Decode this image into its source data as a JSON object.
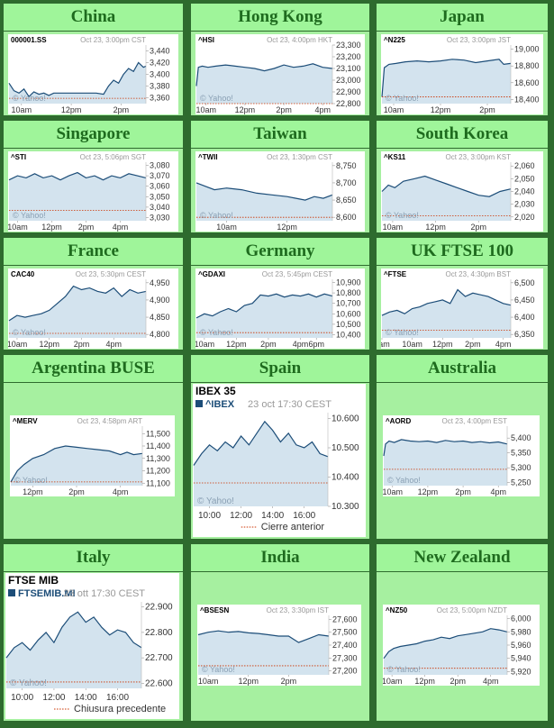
{
  "colors": {
    "page_border": "#2e6b2e",
    "cell_background": "#a6f0a0",
    "title_text": "#1e6b1e",
    "chart_line": "#1c4d78",
    "chart_fill": "#d3e3ee",
    "prev_close_line": "#cc3300",
    "watermark": "#8aa0b4",
    "header_text": "#999999"
  },
  "watermark": "© Yahoo!",
  "markets": [
    {
      "title": "China",
      "ticker": "000001.SS",
      "time": "Oct 23, 3:00pm CST"
    },
    {
      "title": "Hong Kong",
      "ticker": "^HSI",
      "time": "Oct 23, 4:00pm HKT"
    },
    {
      "title": "Japan",
      "ticker": "^N225",
      "time": "Oct 23, 3:00pm JST"
    },
    {
      "title": "Singapore",
      "ticker": "^STI",
      "time": "Oct 23, 5:06pm SGT"
    },
    {
      "title": "Taiwan",
      "ticker": "^TWII",
      "time": "Oct 23, 1:30pm CST"
    },
    {
      "title": "South Korea",
      "ticker": "^KS11",
      "time": "Oct 23, 3:00pm KST"
    },
    {
      "title": "France",
      "ticker": "CAC40",
      "time": "Oct 23, 5:30pm CEST"
    },
    {
      "title": "Germany",
      "ticker": "^GDAXI",
      "time": "Oct 23, 5:45pm CEST"
    },
    {
      "title": "UK FTSE 100",
      "ticker": "^FTSE",
      "time": "Oct 23, 4:30pm BST"
    },
    {
      "title": "Argentina BUSE",
      "ticker": "^MERV",
      "time": "Oct 23, 4:58pm ART"
    },
    {
      "title": "Spain",
      "index_name": "IBEX 35",
      "ticker": "^IBEX",
      "time": "23 oct 17:30 CEST",
      "prev_close_label": "Cierre anterior"
    },
    {
      "title": "Australia",
      "ticker": "^AORD",
      "time": "Oct 23, 4:00pm EST"
    },
    {
      "title": "Italy",
      "index_name": "FTSE MIB",
      "ticker": "FTSEMIB.MI",
      "time": "23 ott 17:30 CEST",
      "prev_close_label": "Chiusura precedente"
    },
    {
      "title": "India",
      "ticker": "^BSESN",
      "time": "Oct 23, 3:30pm IST"
    },
    {
      "title": "New Zealand",
      "ticker": "^NZ50",
      "time": "Oct 23, 5:00pm NZDT"
    }
  ],
  "chart_data": [
    {
      "type": "line",
      "ticker": "000001.SS",
      "ylim": [
        3350,
        3450
      ],
      "yticks": [
        "3,440",
        "3,420",
        "3,400",
        "3,380",
        "3,360"
      ],
      "ytick_values": [
        3440,
        3420,
        3400,
        3380,
        3360
      ],
      "xticks": [
        "10am",
        "12pm",
        "2pm"
      ],
      "xtick_positions": [
        0.5,
        2.5,
        4.5
      ],
      "xlim": [
        0,
        5.5
      ],
      "prev_close": 3359,
      "x": [
        0,
        0.2,
        0.4,
        0.6,
        0.8,
        1.0,
        1.2,
        1.4,
        1.6,
        1.8,
        2.0,
        2.5,
        3.0,
        3.5,
        3.8,
        4.0,
        4.2,
        4.4,
        4.6,
        4.8,
        5.0,
        5.2,
        5.4,
        5.5
      ],
      "y": [
        3385,
        3372,
        3368,
        3375,
        3362,
        3370,
        3366,
        3368,
        3364,
        3368,
        3368,
        3368,
        3368,
        3368,
        3366,
        3380,
        3390,
        3385,
        3400,
        3410,
        3405,
        3420,
        3412,
        3414
      ]
    },
    {
      "type": "line",
      "ticker": "^HSI",
      "ylim": [
        22800,
        23300
      ],
      "yticks": [
        "23,300",
        "23,200",
        "23,100",
        "23,000",
        "22,900",
        "22,800"
      ],
      "ytick_values": [
        23300,
        23200,
        23100,
        23000,
        22900,
        22800
      ],
      "xticks": [
        "10am",
        "12pm",
        "2pm",
        "4pm"
      ],
      "xtick_positions": [
        0.5,
        2.5,
        4.5,
        6.5
      ],
      "xlim": [
        0,
        7
      ],
      "prev_close": 22800,
      "x": [
        0,
        0.1,
        0.3,
        0.6,
        1.0,
        1.5,
        2.0,
        2.5,
        3.0,
        3.5,
        4.0,
        4.5,
        5.0,
        5.5,
        6.0,
        6.5,
        7.0
      ],
      "y": [
        22950,
        23110,
        23120,
        23110,
        23120,
        23130,
        23120,
        23110,
        23100,
        23080,
        23100,
        23130,
        23110,
        23120,
        23140,
        23110,
        23100
      ]
    },
    {
      "type": "line",
      "ticker": "^N225",
      "ylim": [
        18350,
        19050
      ],
      "yticks": [
        "19,000",
        "18,800",
        "18,600",
        "18,400"
      ],
      "ytick_values": [
        19000,
        18800,
        18600,
        18400
      ],
      "xticks": [
        "10am",
        "12pm",
        "2pm"
      ],
      "xtick_positions": [
        0.5,
        2.5,
        4.5
      ],
      "xlim": [
        0,
        5.5
      ],
      "prev_close": 18430,
      "x": [
        0,
        0.1,
        0.3,
        0.6,
        1.0,
        1.5,
        2.0,
        2.5,
        3.0,
        3.5,
        4.0,
        4.5,
        5.0,
        5.2,
        5.5
      ],
      "y": [
        18430,
        18780,
        18820,
        18830,
        18850,
        18860,
        18850,
        18860,
        18880,
        18870,
        18840,
        18860,
        18880,
        18820,
        18830
      ]
    },
    {
      "type": "line",
      "ticker": "^STI",
      "ylim": [
        3027,
        3083
      ],
      "yticks": [
        "3,080",
        "3,070",
        "3,060",
        "3,050",
        "3,040",
        "3,030"
      ],
      "ytick_values": [
        3080,
        3070,
        3060,
        3050,
        3040,
        3030
      ],
      "xticks": [
        "10am",
        "12pm",
        "2pm",
        "4pm"
      ],
      "xtick_positions": [
        0.5,
        2.5,
        4.5,
        6.5
      ],
      "xlim": [
        0,
        8
      ],
      "prev_close": 3037,
      "x": [
        0,
        0.5,
        1.0,
        1.5,
        2.0,
        2.5,
        3.0,
        3.5,
        4.0,
        4.5,
        5.0,
        5.5,
        6.0,
        6.5,
        7.0,
        7.5,
        8.0
      ],
      "y": [
        3066,
        3070,
        3068,
        3072,
        3068,
        3070,
        3066,
        3070,
        3073,
        3068,
        3070,
        3066,
        3070,
        3068,
        3072,
        3070,
        3068
      ]
    },
    {
      "type": "line",
      "ticker": "^TWII",
      "ylim": [
        8590,
        8760
      ],
      "yticks": [
        "8,750",
        "8,700",
        "8,650",
        "8,600"
      ],
      "ytick_values": [
        8750,
        8700,
        8650,
        8600
      ],
      "xticks": [
        "10am",
        "12pm"
      ],
      "xtick_positions": [
        1,
        3
      ],
      "xlim": [
        0,
        4.5
      ],
      "prev_close": 8600,
      "x": [
        0,
        0.3,
        0.6,
        1.0,
        1.5,
        2.0,
        2.5,
        3.0,
        3.3,
        3.6,
        3.9,
        4.2,
        4.5
      ],
      "y": [
        8700,
        8690,
        8680,
        8685,
        8680,
        8670,
        8665,
        8660,
        8655,
        8650,
        8660,
        8655,
        8665
      ]
    },
    {
      "type": "line",
      "ticker": "^KS11",
      "ylim": [
        2017,
        2063
      ],
      "yticks": [
        "2,060",
        "2,050",
        "2,040",
        "2,030",
        "2,020"
      ],
      "ytick_values": [
        2060,
        2050,
        2040,
        2030,
        2020
      ],
      "xticks": [
        "10am",
        "12pm",
        "2pm"
      ],
      "xtick_positions": [
        0.5,
        2.5,
        4.5
      ],
      "xlim": [
        0,
        6
      ],
      "prev_close": 2021,
      "x": [
        0,
        0.3,
        0.6,
        1.0,
        1.5,
        2.0,
        2.5,
        3.0,
        3.5,
        4.0,
        4.5,
        5.0,
        5.5,
        6.0
      ],
      "y": [
        2040,
        2045,
        2043,
        2048,
        2050,
        2052,
        2049,
        2046,
        2043,
        2040,
        2037,
        2036,
        2040,
        2042
      ]
    },
    {
      "type": "line",
      "ticker": "CAC40",
      "ylim": [
        4790,
        4960
      ],
      "yticks": [
        "4,950",
        "4,900",
        "4,850",
        "4,800"
      ],
      "ytick_values": [
        4950,
        4900,
        4850,
        4800
      ],
      "xticks": [
        "10am",
        "12pm",
        "2pm",
        "4pm"
      ],
      "xtick_positions": [
        0.5,
        2.5,
        4.5,
        6.5
      ],
      "xlim": [
        0,
        8.5
      ],
      "prev_close": 4803,
      "x": [
        0,
        0.5,
        1.0,
        1.5,
        2.0,
        2.5,
        3.0,
        3.5,
        4.0,
        4.5,
        5.0,
        5.5,
        6.0,
        6.5,
        7.0,
        7.5,
        8.0,
        8.5
      ],
      "y": [
        4840,
        4855,
        4850,
        4855,
        4860,
        4870,
        4890,
        4910,
        4940,
        4930,
        4935,
        4925,
        4920,
        4935,
        4910,
        4930,
        4920,
        4925
      ]
    },
    {
      "type": "line",
      "ticker": "^GDAXI",
      "ylim": [
        10370,
        10930
      ],
      "yticks": [
        "10,900",
        "10,800",
        "10,700",
        "10,600",
        "10,500",
        "10,400"
      ],
      "ytick_values": [
        10900,
        10800,
        10700,
        10600,
        10500,
        10400
      ],
      "xticks": [
        "10am",
        "12pm",
        "2pm",
        "4pm",
        "6pm"
      ],
      "xtick_positions": [
        0.5,
        2.5,
        4.5,
        6.5,
        7.5
      ],
      "xlim": [
        0,
        8.5
      ],
      "prev_close": 10420,
      "x": [
        0,
        0.5,
        1.0,
        1.5,
        2.0,
        2.5,
        3.0,
        3.5,
        4.0,
        4.5,
        5.0,
        5.5,
        6.0,
        6.5,
        7.0,
        7.5,
        8.0,
        8.5
      ],
      "y": [
        10560,
        10600,
        10580,
        10620,
        10650,
        10620,
        10680,
        10700,
        10780,
        10770,
        10790,
        10760,
        10780,
        10770,
        10790,
        10760,
        10790,
        10770
      ]
    },
    {
      "type": "line",
      "ticker": "^FTSE",
      "ylim": [
        6340,
        6510
      ],
      "yticks": [
        "6,500",
        "6,450",
        "6,400",
        "6,350"
      ],
      "ytick_values": [
        6500,
        6450,
        6400,
        6350
      ],
      "xticks": [
        "8am",
        "10am",
        "12pm",
        "2pm",
        "4pm"
      ],
      "xtick_positions": [
        0,
        2,
        4,
        6,
        8
      ],
      "xlim": [
        0,
        8.5
      ],
      "prev_close": 6362,
      "x": [
        0,
        0.5,
        1.0,
        1.5,
        2.0,
        2.5,
        3.0,
        3.5,
        4.0,
        4.5,
        5.0,
        5.5,
        6.0,
        6.5,
        7.0,
        7.5,
        8.0,
        8.5
      ],
      "y": [
        6405,
        6415,
        6420,
        6410,
        6425,
        6430,
        6440,
        6445,
        6450,
        6440,
        6480,
        6460,
        6470,
        6465,
        6460,
        6450,
        6440,
        6435
      ]
    },
    {
      "type": "line",
      "ticker": "^MERV",
      "ylim": [
        11080,
        11560
      ],
      "yticks": [
        "11,500",
        "11,400",
        "11,300",
        "11,200",
        "11,100"
      ],
      "ytick_values": [
        11500,
        11400,
        11300,
        11200,
        11100
      ],
      "xticks": [
        "12pm",
        "2pm",
        "4pm"
      ],
      "xtick_positions": [
        1,
        3,
        5
      ],
      "xlim": [
        0,
        6
      ],
      "prev_close": 11110,
      "x": [
        0,
        0.3,
        0.6,
        1.0,
        1.5,
        2.0,
        2.5,
        3.0,
        3.5,
        4.0,
        4.5,
        5.0,
        5.3,
        5.6,
        6.0
      ],
      "y": [
        11110,
        11200,
        11250,
        11300,
        11330,
        11380,
        11400,
        11390,
        11380,
        11370,
        11360,
        11330,
        11350,
        11330,
        11340
      ]
    },
    {
      "type": "line",
      "ticker": "^IBEX",
      "ylim": [
        10300,
        10620
      ],
      "yticks": [
        "10.600",
        "10.500",
        "10.400",
        "10.300"
      ],
      "ytick_values": [
        10600,
        10500,
        10400,
        10300
      ],
      "xticks": [
        "10:00",
        "12:00",
        "14:00",
        "16:00"
      ],
      "xtick_positions": [
        1,
        3,
        5,
        7
      ],
      "xlim": [
        0,
        8.5
      ],
      "prev_close": 10380,
      "x": [
        0,
        0.5,
        1.0,
        1.5,
        2.0,
        2.5,
        3.0,
        3.5,
        4.0,
        4.5,
        5.0,
        5.5,
        6.0,
        6.5,
        7.0,
        7.5,
        8.0,
        8.5
      ],
      "y": [
        10440,
        10480,
        10510,
        10490,
        10520,
        10500,
        10540,
        10510,
        10550,
        10590,
        10560,
        10520,
        10550,
        10510,
        10500,
        10520,
        10480,
        10470
      ]
    },
    {
      "type": "line",
      "ticker": "^AORD",
      "ylim": [
        5240,
        5440
      ],
      "yticks": [
        "5,400",
        "5,350",
        "5,300",
        "5,250"
      ],
      "ytick_values": [
        5400,
        5350,
        5300,
        5250
      ],
      "xticks": [
        "10am",
        "12pm",
        "2pm",
        "4pm"
      ],
      "xtick_positions": [
        0.5,
        2.5,
        4.5,
        6.5
      ],
      "xlim": [
        0,
        7
      ],
      "prev_close": 5295,
      "x": [
        0,
        0.1,
        0.3,
        0.6,
        1.0,
        1.5,
        2.0,
        2.5,
        3.0,
        3.5,
        4.0,
        4.5,
        5.0,
        5.5,
        6.0,
        6.5,
        7.0
      ],
      "y": [
        5340,
        5380,
        5390,
        5385,
        5395,
        5390,
        5388,
        5390,
        5385,
        5392,
        5388,
        5390,
        5385,
        5388,
        5384,
        5387,
        5380
      ]
    },
    {
      "type": "line",
      "ticker": "FTSEMIB.MI",
      "ylim": [
        22580,
        22920
      ],
      "yticks": [
        "22.900",
        "22.800",
        "22.700",
        "22.600"
      ],
      "ytick_values": [
        22900,
        22800,
        22700,
        22600
      ],
      "xticks": [
        "10:00",
        "12:00",
        "14:00",
        "16:00"
      ],
      "xtick_positions": [
        1,
        3,
        5,
        7
      ],
      "xlim": [
        0,
        8.5
      ],
      "prev_close": 22605,
      "x": [
        0,
        0.5,
        1.0,
        1.5,
        2.0,
        2.5,
        3.0,
        3.5,
        4.0,
        4.5,
        5.0,
        5.5,
        6.0,
        6.5,
        7.0,
        7.5,
        8.0,
        8.5
      ],
      "y": [
        22700,
        22740,
        22760,
        22730,
        22770,
        22800,
        22760,
        22820,
        22860,
        22880,
        22840,
        22860,
        22820,
        22790,
        22810,
        22800,
        22760,
        22740
      ]
    },
    {
      "type": "line",
      "ticker": "^BSESN",
      "ylim": [
        27170,
        27630
      ],
      "yticks": [
        "27,600",
        "27,500",
        "27,400",
        "27,300",
        "27,200"
      ],
      "ytick_values": [
        27600,
        27500,
        27400,
        27300,
        27200
      ],
      "xticks": [
        "10am",
        "12pm",
        "2pm"
      ],
      "xtick_positions": [
        0.5,
        2.5,
        4.5
      ],
      "xlim": [
        0,
        6.5
      ],
      "prev_close": 27240,
      "x": [
        0,
        0.5,
        1.0,
        1.5,
        2.0,
        2.5,
        3.0,
        3.5,
        4.0,
        4.5,
        5.0,
        5.5,
        6.0,
        6.5
      ],
      "y": [
        27480,
        27500,
        27510,
        27500,
        27505,
        27495,
        27490,
        27480,
        27470,
        27470,
        27420,
        27450,
        27480,
        27470
      ]
    },
    {
      "type": "line",
      "ticker": "^NZ50",
      "ylim": [
        5915,
        6005
      ],
      "yticks": [
        "6,000",
        "5,980",
        "5,960",
        "5,940",
        "5,920"
      ],
      "ytick_values": [
        6000,
        5980,
        5960,
        5940,
        5920
      ],
      "xticks": [
        "10am",
        "12pm",
        "2pm",
        "4pm"
      ],
      "xtick_positions": [
        0.5,
        2.5,
        4.5,
        6.5
      ],
      "xlim": [
        0,
        7.5
      ],
      "prev_close": 5925,
      "x": [
        0,
        0.3,
        0.6,
        1.0,
        1.5,
        2.0,
        2.5,
        3.0,
        3.5,
        4.0,
        4.5,
        5.0,
        5.5,
        6.0,
        6.5,
        7.0,
        7.5
      ],
      "y": [
        5940,
        5950,
        5955,
        5958,
        5960,
        5962,
        5966,
        5968,
        5972,
        5970,
        5974,
        5976,
        5978,
        5980,
        5985,
        5983,
        5980
      ]
    }
  ]
}
